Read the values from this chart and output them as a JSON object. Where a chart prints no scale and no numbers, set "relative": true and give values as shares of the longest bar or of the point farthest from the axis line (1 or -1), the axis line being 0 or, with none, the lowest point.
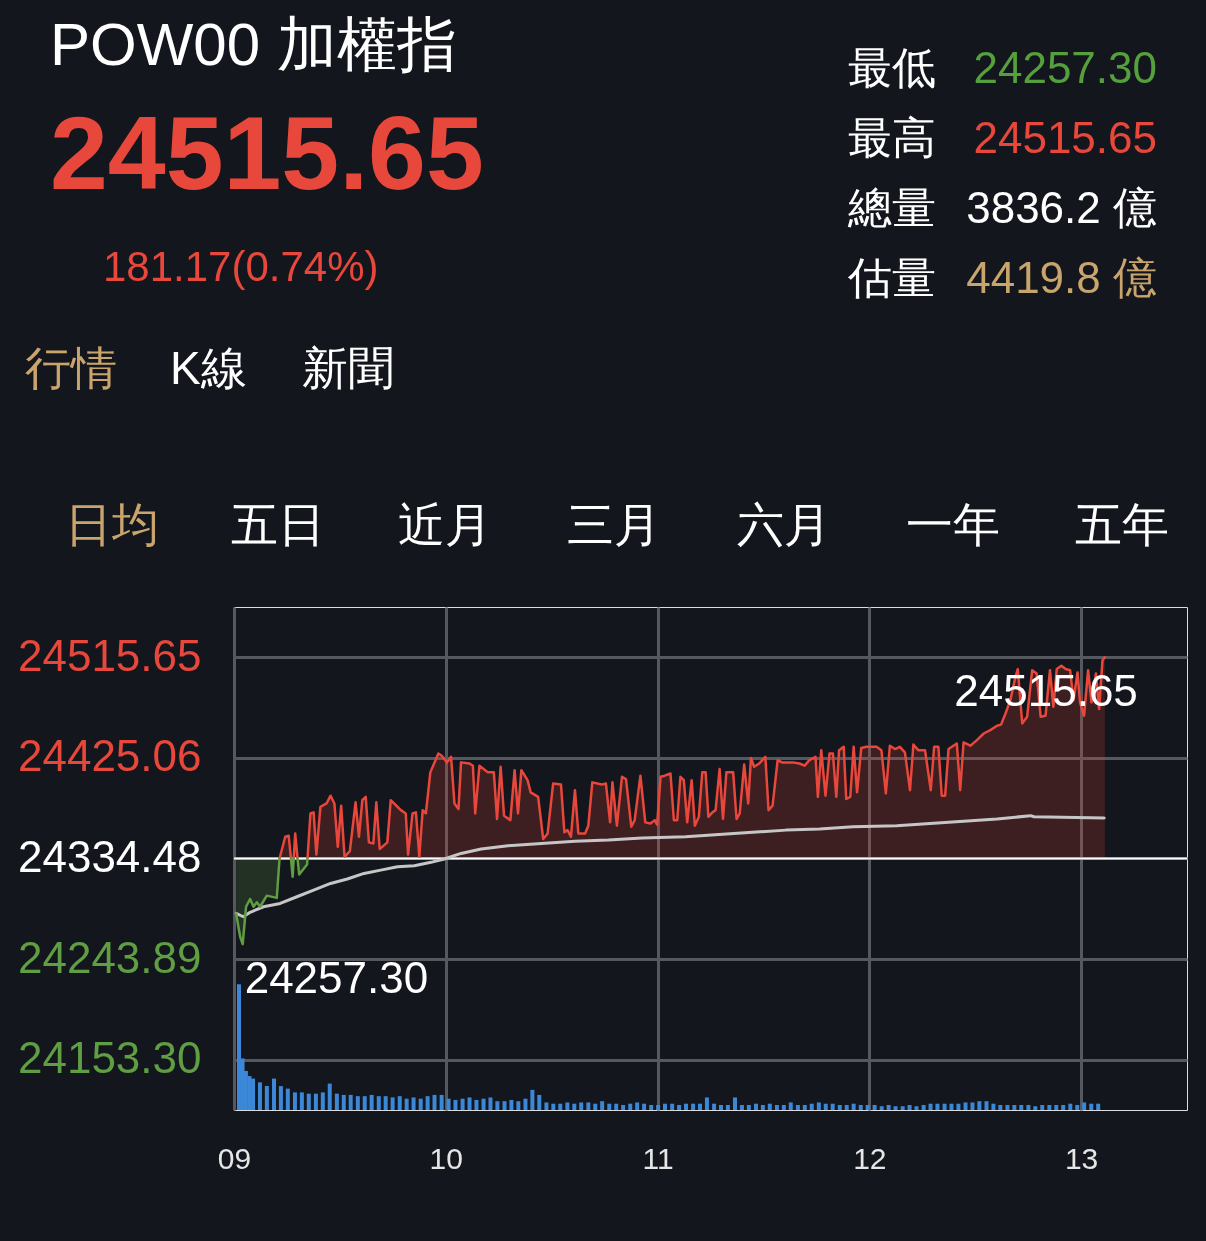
{
  "chart_data": [
    {
      "type": "other",
      "title": "POW00 加權指",
      "annotations": [
        "24515.65",
        "181.17(0.74%)",
        "最低",
        "24257.30",
        "最高",
        "24515.65",
        "總量",
        "3836.2 億",
        "估量",
        "4419.8 億",
        "行情",
        "K線",
        "新聞",
        "日均",
        "五日",
        "近月",
        "三月",
        "六月",
        "一年",
        "五年"
      ]
    },
    {
      "type": "line",
      "xlim": [
        9,
        13.5
      ],
      "xticks": [
        {
          "value": 9,
          "label": "09"
        },
        {
          "value": 10,
          "label": "10"
        },
        {
          "value": 11,
          "label": "11"
        },
        {
          "value": 12,
          "label": "12"
        },
        {
          "value": 13,
          "label": "13"
        }
      ],
      "ylim": [
        24108.0,
        24560.9
      ],
      "yticks": [
        24515.65,
        24425.06,
        24334.48,
        24243.89,
        {
          "value": 24153.3,
          "label": "24153.30"
        }
      ],
      "grid": true,
      "ref_lines": [
        {
          "axis": "y",
          "value": 24334.48,
          "color": "#ffffff"
        }
      ],
      "annotations": [
        {
          "text": "24515.65",
          "x": 13.112,
          "y": 24515.65
        },
        {
          "text": "24257.30",
          "x": 9.041,
          "y": 24257.3
        }
      ],
      "series": [
        {
          "color": "#e8473b",
          "x": [
            9.215,
            9.242,
            9.258,
            9.269,
            9.277,
            9.282,
            9.289,
            9.3,
            9.308,
            9.345,
            9.347,
            9.361,
            9.376,
            9.389,
            9.408,
            9.437,
            9.456,
            9.474,
            9.49,
            9.506,
            9.522,
            9.547,
            9.574,
            9.59,
            9.606,
            9.622,
            9.637,
            9.658,
            9.672,
            9.688,
            9.724,
            9.74,
            9.788,
            9.811,
            9.822,
            9.843,
            9.859,
            9.875,
            9.891,
            9.906,
            9.927,
            9.965,
            9.981,
            10.006,
            10.025,
            10.041,
            10.06,
            10.072,
            10.112,
            10.128,
            10.139,
            10.159,
            10.199,
            10.227,
            10.242,
            10.259,
            10.275,
            10.305,
            10.325,
            10.341,
            10.357,
            10.386,
            10.401,
            10.436,
            10.46,
            10.481,
            10.507,
            10.544,
            10.56,
            10.575,
            10.591,
            10.61,
            10.626,
            10.658,
            10.673,
            10.692,
            10.737,
            10.756,
            10.776,
            10.787,
            10.808,
            10.832,
            10.851,
            10.876,
            10.892,
            10.919,
            10.942,
            10.966,
            10.987,
            10.998,
            11.014,
            11.034,
            11.061,
            11.077,
            11.093,
            11.108,
            11.124,
            11.14,
            11.161,
            11.176,
            11.195,
            11.211,
            11.227,
            11.24,
            11.259,
            11.274,
            11.293,
            11.309,
            11.325,
            11.357,
            11.373,
            11.388,
            11.409,
            11.428,
            11.441,
            11.456,
            11.48,
            11.509,
            11.524,
            11.543,
            11.567,
            11.588,
            11.638,
            11.67,
            11.694,
            11.717,
            11.746,
            11.757,
            11.773,
            11.793,
            11.812,
            11.828,
            11.844,
            11.857,
            11.879,
            11.891,
            11.91,
            11.926,
            11.942,
            11.962,
            11.986,
            12.034,
            12.057,
            12.078,
            12.097,
            12.121,
            12.144,
            12.168,
            12.192,
            12.208,
            12.231,
            12.263,
            12.29,
            12.306,
            12.326,
            12.342,
            12.358,
            12.374,
            12.397,
            12.413,
            12.429,
            12.445,
            12.477,
            12.508,
            12.54,
            12.571,
            12.603,
            12.622,
            12.643,
            12.666,
            12.69,
            12.701,
            12.722,
            12.745,
            12.769,
            12.79,
            12.809,
            12.832,
            12.853,
            12.869,
            12.885,
            12.907,
            12.927,
            12.948,
            12.964,
            12.983,
            12.995,
            13.014,
            13.033,
            13.049,
            13.07,
            13.085,
            13.101,
            13.112
          ],
          "values": [
            24334.48,
            24354,
            24355,
            24334.48,
            null,
            24334.48,
            24357,
            24334.48,
            null,
            null,
            24334.48,
            24375,
            24376,
            24338,
            24381,
            24384,
            24391,
            24384,
            24345,
            24382,
            24336,
            24341,
            24385,
            24354,
            24387,
            24390,
            24349,
            24348,
            24385,
            24343,
            24349,
            24387,
            24378,
            24375,
            24338,
            24375,
            24376,
            24336,
            24378,
            24375,
            24412,
            24429,
            24427,
            24421,
            24426,
            24384,
            24379,
            24421,
            24420,
            24418,
            24375,
            24418,
            24412,
            24412,
            24370,
            24417,
            24373,
            24369,
            24414,
            24375,
            24414,
            24405,
            24394,
            24390,
            24352,
            24357,
            24402,
            24401,
            24358,
            24360,
            24354,
            24396,
            24357,
            24357,
            24364,
            24403,
            24401,
            24402,
            24367,
            24403,
            24364,
            24408,
            24406,
            24363,
            24369,
            24409,
            24367,
            24366,
            24369,
            24365,
            24408,
            24409,
            24411,
            24369,
            24369,
            24408,
            24405,
            24367,
            24405,
            24364,
            24372,
            24412,
            24412,
            24372,
            24376,
            24378,
            24415,
            24370,
            24412,
            24412,
            24370,
            24375,
            24419,
            24384,
            24425,
            24417,
            24420,
            24426,
            24378,
            24382,
            24423,
            24421,
            24421,
            24420,
            24418,
            24423,
            24426,
            24390,
            24432,
            24391,
            24429,
            24429,
            24390,
            24432,
            24435,
            24388,
            24390,
            24435,
            24394,
            24434,
            24435,
            24435,
            24432,
            24393,
            24436,
            24433,
            24435,
            24430,
            24396,
            24437,
            24432,
            24432,
            24396,
            24435,
            24435,
            24391,
            24391,
            24433,
            24436,
            24438,
            24396,
            24439,
            24436,
            24441,
            24447,
            24450,
            24454,
            24455,
            24465,
            24477,
            24498,
            24505,
            24456,
            24462,
            24504,
            24501,
            24462,
            24463,
            24504,
            24471,
            24505,
            24508,
            24505,
            24504,
            24477,
            24502,
            24475,
            24463,
            24504,
            24475,
            24501,
            24469,
            24513,
            24515.65
          ],
          "lower": [
            24334.48,
            24334.48,
            24334.48,
            24334.48,
            null,
            24334.48,
            24334.48,
            24334.48,
            null,
            null,
            24334.48,
            24334.48,
            24334.48,
            24334.48,
            24334.48,
            24334.48,
            24334.48,
            24334.48,
            24334.48,
            24334.48,
            24334.48,
            24334.48,
            24334.48,
            24334.48,
            24334.48,
            24334.48,
            24334.48,
            24334.48,
            24334.48,
            24334.48,
            24334.48,
            24334.48,
            24334.48,
            24334.48,
            24334.48,
            24334.48,
            24334.48,
            24334.48,
            24334.48,
            24334.48,
            24334.48,
            24334.48,
            24334.48,
            24334.48,
            24334.48,
            24334.48,
            24334.48,
            24334.48,
            24334.48,
            24334.48,
            24334.48,
            24334.48,
            24334.48,
            24334.48,
            24334.48,
            24334.48,
            24334.48,
            24334.48,
            24334.48,
            24334.48,
            24334.48,
            24334.48,
            24334.48,
            24334.48,
            24334.48,
            24334.48,
            24334.48,
            24334.48,
            24334.48,
            24334.48,
            24334.48,
            24334.48,
            24334.48,
            24334.48,
            24334.48,
            24334.48,
            24334.48,
            24334.48,
            24334.48,
            24334.48,
            24334.48,
            24334.48,
            24334.48,
            24334.48,
            24334.48,
            24334.48,
            24334.48,
            24334.48,
            24334.48,
            24334.48,
            24334.48,
            24334.48,
            24334.48,
            24334.48,
            24334.48,
            24334.48,
            24334.48,
            24334.48,
            24334.48,
            24334.48,
            24334.48,
            24334.48,
            24334.48,
            24334.48,
            24334.48,
            24334.48,
            24334.48,
            24334.48,
            24334.48,
            24334.48,
            24334.48,
            24334.48,
            24334.48,
            24334.48,
            24334.48,
            24334.48,
            24334.48,
            24334.48,
            24334.48,
            24334.48,
            24334.48,
            24334.48,
            24334.48,
            24334.48,
            24334.48,
            24334.48,
            24334.48,
            24334.48,
            24334.48,
            24334.48,
            24334.48,
            24334.48,
            24334.48,
            24334.48,
            24334.48,
            24334.48,
            24334.48,
            24334.48,
            24334.48,
            24334.48,
            24334.48,
            24334.48,
            24334.48,
            24334.48,
            24334.48,
            24334.48,
            24334.48,
            24334.48,
            24334.48,
            24334.48,
            24334.48,
            24334.48,
            24334.48,
            24334.48,
            24334.48,
            24334.48,
            24334.48,
            24334.48,
            24334.48,
            24334.48,
            24334.48,
            24334.48,
            24334.48,
            24334.48,
            24334.48,
            24334.48,
            24334.48,
            24334.48,
            24334.48,
            24334.48,
            24334.48,
            24334.48,
            24334.48,
            24334.48,
            24334.48,
            24334.48,
            24334.48,
            24334.48,
            24334.48,
            24334.48,
            24334.48,
            24334.48,
            24334.48,
            24334.48,
            24334.48,
            24334.48,
            24334.48,
            24334.48,
            24334.48,
            24334.48,
            24334.48,
            24334.48,
            24334.48,
            24334.48
          ],
          "upper": [
            24334.48,
            24354,
            24355,
            24334.48,
            null,
            24334.48,
            24357,
            24334.48,
            null,
            null,
            24334.48,
            24375,
            24376,
            24338,
            24381,
            24384,
            24391,
            24384,
            24345,
            24382,
            24336,
            24341,
            24385,
            24354,
            24387,
            24390,
            24349,
            24348,
            24385,
            24343,
            24349,
            24387,
            24378,
            24375,
            24338,
            24375,
            24376,
            24336,
            24378,
            24375,
            24412,
            24429,
            24427,
            24421,
            24426,
            24384,
            24379,
            24421,
            24420,
            24418,
            24375,
            24418,
            24412,
            24412,
            24370,
            24417,
            24373,
            24369,
            24414,
            24375,
            24414,
            24405,
            24394,
            24390,
            24352,
            24357,
            24402,
            24401,
            24358,
            24360,
            24354,
            24396,
            24357,
            24357,
            24364,
            24403,
            24401,
            24402,
            24367,
            24403,
            24364,
            24408,
            24406,
            24363,
            24369,
            24409,
            24367,
            24366,
            24369,
            24365,
            24408,
            24409,
            24411,
            24369,
            24369,
            24408,
            24405,
            24367,
            24405,
            24364,
            24372,
            24412,
            24412,
            24372,
            24376,
            24378,
            24415,
            24370,
            24412,
            24412,
            24370,
            24375,
            24419,
            24384,
            24425,
            24417,
            24420,
            24426,
            24378,
            24382,
            24423,
            24421,
            24421,
            24420,
            24418,
            24423,
            24426,
            24390,
            24432,
            24391,
            24429,
            24429,
            24390,
            24432,
            24435,
            24388,
            24390,
            24435,
            24394,
            24434,
            24435,
            24435,
            24432,
            24393,
            24436,
            24433,
            24435,
            24430,
            24396,
            24437,
            24432,
            24432,
            24396,
            24435,
            24435,
            24391,
            24391,
            24433,
            24436,
            24438,
            24396,
            24439,
            24436,
            24441,
            24447,
            24450,
            24454,
            24455,
            24465,
            24477,
            24498,
            24505,
            24456,
            24462,
            24504,
            24501,
            24462,
            24463,
            24504,
            24471,
            24505,
            24508,
            24505,
            24504,
            24477,
            24502,
            24475,
            24463,
            24504,
            24475,
            24501,
            24469,
            24513,
            24515.65
          ]
        },
        {
          "color": "#5f9e42",
          "x": [
            9.01,
            9.029,
            9.041,
            9.057,
            9.076,
            9.092,
            9.108,
            9.123,
            9.155,
            9.202,
            9.215,
            9.242,
            9.258,
            9.269,
            9.277,
            9.282,
            9.289,
            9.3,
            9.308,
            9.345,
            9.347
          ],
          "values": [
            24285,
            24264,
            24257.3,
            24291,
            24298,
            24291,
            24295,
            24291,
            24301,
            24299,
            24334.48,
            null,
            null,
            24334.48,
            24318,
            24334.48,
            null,
            24334.48,
            24320,
            24329,
            24334.48
          ],
          "lower": [
            24285,
            24264,
            24257.3,
            24291,
            24298,
            24291,
            24295,
            24291,
            24301,
            24299,
            24334.48,
            null,
            null,
            24334.48,
            24318,
            24334.48,
            null,
            24334.48,
            24320,
            24329,
            24334.48
          ],
          "upper": [
            24334.48,
            24334.48,
            24334.48,
            24334.48,
            24334.48,
            24334.48,
            24334.48,
            24334.48,
            24334.48,
            24334.48,
            24334.48,
            null,
            null,
            24334.48,
            24334.48,
            24334.48,
            null,
            24334.48,
            24334.48,
            24334.48,
            24334.48
          ]
        },
        {
          "color": "#c6c6c6",
          "x": [
            9.01,
            9.044,
            9.076,
            9.139,
            9.218,
            9.297,
            9.376,
            9.456,
            9.535,
            9.614,
            9.693,
            9.772,
            9.851,
            9.93,
            9.993,
            10.072,
            10.167,
            10.294,
            10.452,
            10.61,
            10.768,
            10.927,
            11.132,
            11.29,
            11.448,
            11.607,
            11.765,
            11.923,
            12.129,
            12.287,
            12.445,
            12.603,
            12.761,
            12.777,
            13.109
          ],
          "values": [
            24285,
            24282,
            24286,
            24291,
            24294,
            24300,
            24306,
            24312,
            24316,
            24321,
            24324,
            24327,
            24328,
            24331,
            24334,
            24339,
            24343,
            24346,
            24348,
            24350,
            24351,
            24353,
            24354,
            24356,
            24358,
            24360,
            24361,
            24363,
            24364,
            24366,
            24368,
            24370,
            24373,
            24372,
            24371
          ]
        }
      ]
    },
    {
      "type": "bar",
      "relative": true,
      "xlim": [
        9,
        13.5
      ],
      "tick_labels": false,
      "color": "#3b87d8",
      "x": [
        9.0,
        9.017,
        9.033,
        9.05,
        9.067,
        9.1,
        9.133,
        9.167,
        9.2,
        9.233,
        9.267,
        9.3,
        9.333,
        9.367,
        9.4,
        9.433,
        9.467,
        9.5,
        9.533,
        9.567,
        9.6,
        9.633,
        9.667,
        9.7,
        9.733,
        9.767,
        9.8,
        9.833,
        9.867,
        9.9,
        9.933,
        9.967,
        10.0,
        10.033,
        10.067,
        10.1,
        10.133,
        10.167,
        10.2,
        10.233,
        10.267,
        10.3,
        10.333,
        10.367,
        10.4,
        10.433,
        10.467,
        10.5,
        10.533,
        10.567,
        10.6,
        10.633,
        10.667,
        10.7,
        10.733,
        10.767,
        10.8,
        10.833,
        10.867,
        10.9,
        10.933,
        10.967,
        11.0,
        11.033,
        11.067,
        11.1,
        11.133,
        11.167,
        11.2,
        11.233,
        11.267,
        11.3,
        11.333,
        11.367,
        11.4,
        11.433,
        11.467,
        11.5,
        11.533,
        11.567,
        11.6,
        11.633,
        11.667,
        11.7,
        11.733,
        11.767,
        11.8,
        11.833,
        11.867,
        11.9,
        11.933,
        11.967,
        12.0,
        12.033,
        12.067,
        12.1,
        12.133,
        12.167,
        12.2,
        12.233,
        12.267,
        12.3,
        12.333,
        12.367,
        12.4,
        12.433,
        12.467,
        12.5,
        12.533,
        12.567,
        12.6,
        12.633,
        12.667,
        12.7,
        12.733,
        12.767,
        12.8,
        12.833,
        12.867,
        12.9,
        12.933,
        12.967,
        13.0,
        13.033,
        13.067,
        13.1
      ],
      "values": [
        1.0,
        0.41,
        0.31,
        0.27,
        0.25,
        0.22,
        0.19,
        0.25,
        0.19,
        0.17,
        0.14,
        0.14,
        0.13,
        0.13,
        0.14,
        0.21,
        0.13,
        0.12,
        0.12,
        0.11,
        0.11,
        0.12,
        0.11,
        0.11,
        0.1,
        0.11,
        0.09,
        0.1,
        0.09,
        0.11,
        0.12,
        0.12,
        0.09,
        0.08,
        0.09,
        0.1,
        0.08,
        0.09,
        0.1,
        0.07,
        0.07,
        0.08,
        0.07,
        0.09,
        0.16,
        0.12,
        0.06,
        0.05,
        0.05,
        0.06,
        0.05,
        0.06,
        0.06,
        0.05,
        0.07,
        0.05,
        0.05,
        0.04,
        0.05,
        0.06,
        0.05,
        0.04,
        0.04,
        0.05,
        0.05,
        0.04,
        0.05,
        0.05,
        0.05,
        0.1,
        0.05,
        0.04,
        0.04,
        0.1,
        0.04,
        0.04,
        0.05,
        0.04,
        0.05,
        0.04,
        0.04,
        0.06,
        0.04,
        0.04,
        0.05,
        0.06,
        0.05,
        0.05,
        0.04,
        0.04,
        0.05,
        0.04,
        0.04,
        0.04,
        0.03,
        0.04,
        0.03,
        0.03,
        0.04,
        0.03,
        0.04,
        0.05,
        0.05,
        0.05,
        0.05,
        0.05,
        0.06,
        0.06,
        0.07,
        0.07,
        0.05,
        0.04,
        0.04,
        0.04,
        0.04,
        0.04,
        0.03,
        0.04,
        0.04,
        0.04,
        0.04,
        0.05,
        0.04,
        0.06,
        0.05,
        0.05
      ]
    }
  ]
}
